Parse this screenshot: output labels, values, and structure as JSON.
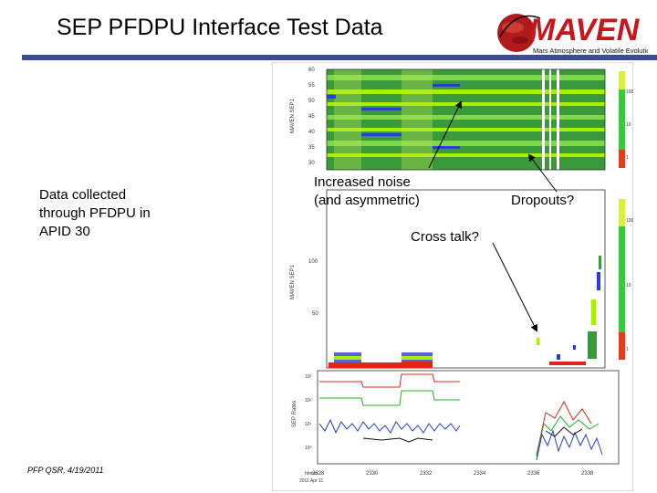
{
  "slide": {
    "title": "SEP PFDPU Interface Test Data",
    "left_text": [
      "Data collected",
      "through PFDPU in",
      "APID 30"
    ],
    "footer": "PFP QSR, 4/19/2011"
  },
  "logo": {
    "wordmark": "MAVEN",
    "tagline": "Mars Atmosphere and Volatile Evolution Mission",
    "color": "#c8161d"
  },
  "annotations": {
    "noise": [
      "Increased noise",
      "(and asymmetric)"
    ],
    "cross_talk": "Cross talk?",
    "dropouts": "Dropouts?"
  },
  "plot": {
    "panel1": {
      "ylabel": "MAVEN SEP1",
      "yticks": [
        "60",
        "55",
        "50",
        "45",
        "40",
        "35",
        "30"
      ],
      "colorbar_ticks": [
        "100",
        "10",
        "1"
      ]
    },
    "panel2": {
      "ylabel": "MAVEN SEP1",
      "yticks": [
        "100",
        "50"
      ],
      "colorbar_ticks": [
        "100",
        "10",
        "1"
      ]
    },
    "panel3": {
      "ylabel": "SEP Rates",
      "yticks": [
        "10³",
        "10²",
        "10¹",
        "10⁰"
      ]
    },
    "xticks": [
      "2328",
      "2330",
      "2332",
      "2334",
      "2336",
      "2338"
    ],
    "xlabel_lines": [
      "hhmm",
      "2011 Apr 11"
    ],
    "colors": {
      "spectrogram_bg": "#3a9a3a",
      "band_bright": "#a8f000",
      "noise_blue": "#2a3fd0",
      "red_series": "#e0241c",
      "green_series": "#21b02a",
      "black_series": "#111111"
    }
  }
}
